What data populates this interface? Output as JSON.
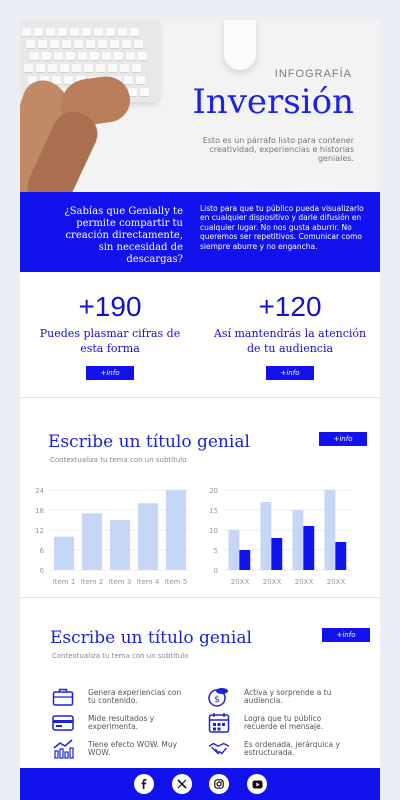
{
  "hero": {
    "label": "INFOGRAFÍA",
    "title": "Inversión",
    "text": "Esto es un párrafo listo para contener creatividad, experiencias e historias geniales."
  },
  "band": {
    "question": "¿Sabías que Genially te permite compartir tu creación directamente, sin necesidad de descargas?",
    "text": "Listo para que tu público pueda visualizarlo en cualquier dispositivo y darle difusión en cualquier lugar. No nos gusta aburrir. No queremos ser repetitivos. Comunicar como siempre aburre y no engancha."
  },
  "stats": [
    {
      "number": "+190",
      "text": "Puedes plasmar cifras de esta forma",
      "button": "+info"
    },
    {
      "number": "+120",
      "text": "Así mantendrás la atención de tu audiencia",
      "button": "+info"
    }
  ],
  "section2": {
    "title": "Escribe un título genial",
    "subtitle": "Contextualiza tu tema con un subtítulo",
    "button": "+info"
  },
  "chart_data": [
    {
      "type": "bar",
      "categories": [
        "Item 1",
        "Item 2",
        "Item 3",
        "Item 4",
        "Item 5"
      ],
      "values": [
        10,
        17,
        15,
        20,
        24
      ],
      "ylim": [
        0,
        24
      ],
      "yticks": [
        0,
        6,
        12,
        18,
        24
      ],
      "grid": true,
      "colors": [
        "#c7d6f5"
      ]
    },
    {
      "type": "bar",
      "categories": [
        "20XX",
        "20XX",
        "20XX",
        "20XX"
      ],
      "series": [
        {
          "values": [
            10,
            17,
            15,
            20
          ]
        },
        {
          "values": [
            5,
            8,
            11,
            7
          ]
        }
      ],
      "ylim": [
        0,
        20
      ],
      "yticks": [
        0,
        5,
        10,
        15,
        20
      ],
      "grid": true,
      "colors": [
        "#c7d6f5",
        "#1212ee"
      ]
    }
  ],
  "section3": {
    "title": "Escribe un título genial",
    "subtitle": "Contextualiza tu tema con un subtítulo",
    "button": "+info",
    "features": [
      {
        "icon": "briefcase-icon",
        "text": "Genera experiencias con tu contenido."
      },
      {
        "icon": "coins-icon",
        "text": "Activa y sorprende a tu audiencia."
      },
      {
        "icon": "credit-card-icon",
        "text": "Mide resultados y experimenta."
      },
      {
        "icon": "calendar-icon",
        "text": "Logra que tu público recuerde el mensaje."
      },
      {
        "icon": "growth-chart-icon",
        "text": "Tiene efecto WOW. Muy WOW."
      },
      {
        "icon": "handshake-icon",
        "text": "Es ordenada, jerárquica y estructurada."
      }
    ]
  },
  "footer": {
    "social": [
      "facebook-icon",
      "x-icon",
      "instagram-icon",
      "youtube-icon"
    ]
  },
  "colors": {
    "accent": "#1212ee",
    "title": "#1c22e6",
    "bar_light": "#c7d6f5"
  }
}
